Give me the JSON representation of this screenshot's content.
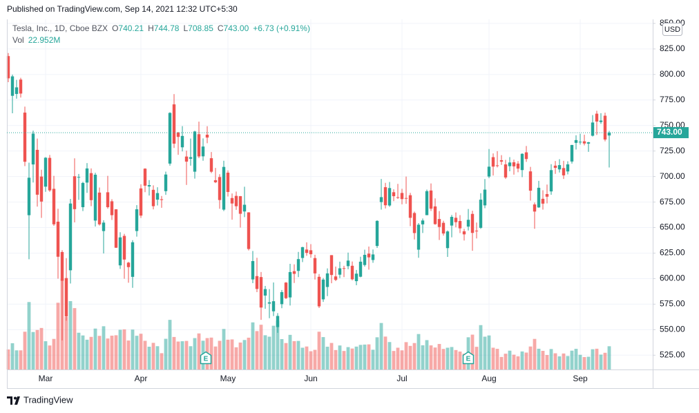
{
  "header": {
    "published": "Published on TradingView.com, Sep 14, 2021 12:32 UTC+5:30"
  },
  "footer": {
    "brand": "TradingView"
  },
  "chart_data": {
    "type": "candlestick",
    "symbol": "Tesla, Inc., 1D, Cboe BZX",
    "ohlc_legend": [
      {
        "label": "O",
        "value": "740.21"
      },
      {
        "label": "H",
        "value": "744.78"
      },
      {
        "label": "L",
        "value": "708.85"
      },
      {
        "label": "C",
        "value": "743.00"
      }
    ],
    "change": "+6.73 (+0.91%)",
    "volume_legend": {
      "label": "Vol",
      "value": "22.952M"
    },
    "currency": "USD",
    "last_price": {
      "value": 743,
      "label": "743.00"
    },
    "events": [
      {
        "label": "E"
      },
      {
        "label": "E"
      }
    ],
    "up_color": "#26a69a",
    "down_color": "#ef5350",
    "grid": true,
    "ylim": [
      511,
      854
    ],
    "yticks": [
      {
        "value": 525,
        "label": "525.00"
      },
      {
        "value": 550,
        "label": "550.00"
      },
      {
        "value": 575,
        "label": "575.00"
      },
      {
        "value": 600,
        "label": "600.00"
      },
      {
        "value": 625,
        "label": "625.00"
      },
      {
        "value": 650,
        "label": "650.00"
      },
      {
        "value": 675,
        "label": "675.00"
      },
      {
        "value": 700,
        "label": "700.00"
      },
      {
        "value": 725,
        "label": "725.00"
      },
      {
        "value": 750,
        "label": "750.00"
      },
      {
        "value": 775,
        "label": "775.00"
      },
      {
        "value": 800,
        "label": "800.00"
      },
      {
        "value": 825,
        "label": "825.00"
      },
      {
        "value": 850,
        "label": "850.00"
      }
    ],
    "volume_lim": [
      0,
      150
    ],
    "categories": [
      null,
      null,
      null,
      null,
      null,
      null,
      null,
      null,
      null,
      "Mar",
      null,
      null,
      null,
      null,
      null,
      null,
      null,
      null,
      null,
      null,
      null,
      null,
      null,
      null,
      null,
      null,
      null,
      null,
      null,
      null,
      null,
      null,
      "Apr",
      null,
      null,
      null,
      null,
      null,
      null,
      null,
      null,
      null,
      null,
      null,
      null,
      null,
      null,
      null,
      null,
      null,
      null,
      null,
      null,
      "May",
      null,
      null,
      null,
      null,
      null,
      null,
      null,
      null,
      null,
      null,
      null,
      null,
      null,
      null,
      null,
      null,
      null,
      null,
      null,
      "Jun",
      null,
      null,
      null,
      null,
      null,
      null,
      null,
      null,
      null,
      null,
      null,
      null,
      null,
      null,
      null,
      null,
      null,
      null,
      null,
      null,
      null,
      "Jul",
      null,
      null,
      null,
      null,
      null,
      null,
      null,
      null,
      null,
      null,
      null,
      null,
      null,
      null,
      null,
      null,
      null,
      null,
      null,
      null,
      "Aug",
      null,
      null,
      null,
      null,
      null,
      null,
      null,
      null,
      null,
      null,
      null,
      null,
      null,
      null,
      null,
      null,
      null,
      null,
      null,
      null,
      null,
      "Sep",
      null,
      null,
      null,
      null,
      null,
      null,
      null
    ],
    "open": [
      818.0,
      779.09,
      780.9,
      795.0,
      762.64,
      662.13,
      711.85,
      726.15,
      700.0,
      690.11,
      718.28,
      687.99,
      655.8,
      626.06,
      600.55,
      608.18,
      700.3,
      699.4,
      670.0,
      694.09,
      703.35,
      656.87,
      684.29,
      646.6,
      684.59,
      675.77,
      667.91,
      613.0,
      641.87,
      615.64,
      601.75,
      646.62,
      688.37,
      707.71,
      690.3,
      687.0,
      677.38,
      677.77,
      685.7,
      712.7,
      770.7,
      743.1,
      728.65,
      719.6,
      717.42,
      704.77,
      741.5,
      719.8,
      741.0,
      717.96,
      696.41,
      699.51,
      667.59,
      703.8,
      678.94,
      681.06,
      680.76,
      665.8,
      664.9,
      599.24,
      602.49,
      601.54,
      583.41,
      575.55,
      568.0,
      552.55,
      575.0,
      596.11,
      581.6,
      607.31,
      607.56,
      620.24,
      628.5,
      627.8,
      620.13,
      601.8,
      579.71,
      591.83,
      623.01,
      602.17,
      603.88,
      610.23,
      612.23,
      612.6,
      597.54,
      601.89,
      613.37,
      624.48,
      618.25,
      632.0,
      674.99,
      689.58,
      671.64,
      684.65,
      679.77,
      683.92,
      678.98,
      681.71,
      664.27,
      628.37,
      653.18,
      662.2,
      686.32,
      670.75,
      658.39,
      654.68,
      629.89,
      651.99,
      659.61,
      656.44,
      646.36,
      650.97,
      663.4,
      647.0,
      649.79,
      671.76,
      700.0,
      719.0,
      711.0,
      716.0,
      711.9,
      710.17,
      713.99,
      712.71,
      706.34,
      723.71,
      705.07,
      672.66,
      669.75,
      678.21,
      682.85,
      685.44,
      710.68,
      707.03,
      708.31,
      705.0,
      714.72,
      733.0,
      734.08,
      734.5,
      732.25,
      740.0,
      761.58,
      753.41,
      759.6,
      740.21
    ],
    "high": [
      821.0,
      799.84,
      794.69,
      796.79,
      768.5,
      713.61,
      745.0,
      737.21,
      706.7,
      719.0,
      721.11,
      700.7,
      668.5,
      627.84,
      620.13,
      678.09,
      717.85,
      702.5,
      694.88,
      713.18,
      707.92,
      703.73,
      689.23,
      657.23,
      700.64,
      677.8,
      668.02,
      645.5,
      643.82,
      616.48,
      637.66,
      672.0,
      692.42,
      708.16,
      696.55,
      691.38,
      689.55,
      680.97,
      704.8,
      763.0,
      780.79,
      743.69,
      749.41,
      725.4,
      737.25,
      744.84,
      753.77,
      737.36,
      749.3,
      724.0,
      708.5,
      702.25,
      715.47,
      706.0,
      683.45,
      685.3,
      681.02,
      690.0,
      665.05,
      627.1,
      620.41,
      606.46,
      592.87,
      589.73,
      596.25,
      566.21,
      588.85,
      596.68,
      614.48,
      613.99,
      626.17,
      631.13,
      635.59,
      633.8,
      623.36,
      604.55,
      600.61,
      610.0,
      623.09,
      611.79,
      616.59,
      612.56,
      625.49,
      616.79,
      608.5,
      621.47,
      628.35,
      631.39,
      628.57,
      657.2,
      697.62,
      693.81,
      694.7,
      687.51,
      692.81,
      687.99,
      700.0,
      684.0,
      665.7,
      654.43,
      658.91,
      687.24,
      693.28,
      678.61,
      666.14,
      656.7,
      647.2,
      662.39,
      664.86,
      662.17,
      648.8,
      668.2,
      666.5,
      654.97,
      683.69,
      697.53,
      726.94,
      722.65,
      724.9,
      720.95,
      716.33,
      719.03,
      716.59,
      715.18,
      722.8,
      729.9,
      709.5,
      674.58,
      695.77,
      686.55,
      692.13,
      712.13,
      715.22,
      716.97,
      715.4,
      715.0,
      731.0,
      740.39,
      741.99,
      740.97,
      734.0,
      760.2,
      764.45,
      762.1,
      762.61,
      744.78
    ],
    "low": [
      792.44,
      762.01,
      776.27,
      777.37,
      710.2,
      619.0,
      694.17,
      670.58,
      659.51,
      685.05,
      685.0,
      651.71,
      600.0,
      539.49,
      558.79,
      595.21,
      655.06,
      677.18,
      666.14,
      684.04,
      671.0,
      651.01,
      652.0,
      624.62,
      668.51,
      657.51,
      630.11,
      609.5,
      599.89,
      596.02,
      591.01,
      641.11,
      659.42,
      684.7,
      681.37,
      667.84,
      671.65,
      669.43,
      682.09,
      710.66,
      728.03,
      721.31,
      724.6,
      691.8,
      710.69,
      698.0,
      718.04,
      715.46,
      732.61,
      703.35,
      693.6,
      668.5,
      666.14,
      680.5,
      657.7,
      667.34,
      650.0,
      660.22,
      627.61,
      595.6,
      586.77,
      559.65,
      570.46,
      561.2,
      563.38,
      546.98,
      571.07,
      580.0,
      573.65,
      595.71,
      601.5,
      616.21,
      622.38,
      620.55,
      599.14,
      571.22,
      577.2,
      582.88,
      595.5,
      597.63,
      600.5,
      601.52,
      609.18,
      598.23,
      593.5,
      601.34,
      611.8,
      608.88,
      615.5,
      630.04,
      667.61,
      668.7,
      670.32,
      675.89,
      678.14,
      672.8,
      673.26,
      651.4,
      638.32,
      620.46,
      644.69,
      662.16,
      666.3,
      652.84,
      637.88,
      642.2,
      621.29,
      640.5,
      650.29,
      644.6,
      637.3,
      647.11,
      627.24,
      639.4,
      648.8,
      669.0,
      698.4,
      701.01,
      708.93,
      711.41,
      697.63,
      705.13,
      701.88,
      704.21,
      699.4,
      714.34,
      676.4,
      648.84,
      669.35,
      667.59,
      673.7,
      682.18,
      702.64,
      704.0,
      697.62,
      702.1,
      712.73,
      726.44,
      731.27,
      730.54,
      724.2,
      739.26,
      740.77,
      751.63,
      734.52,
      708.85
    ],
    "close": [
      796.22,
      798.15,
      787.38,
      781.3,
      714.5,
      698.84,
      742.02,
      682.22,
      675.5,
      718.43,
      686.44,
      653.2,
      621.44,
      597.95,
      563.0,
      673.58,
      668.06,
      699.6,
      693.73,
      707.94,
      676.88,
      701.81,
      653.16,
      654.87,
      670.0,
      662.16,
      630.27,
      640.39,
      618.71,
      611.29,
      635.62,
      667.93,
      661.75,
      691.05,
      691.62,
      670.97,
      683.8,
      677.02,
      701.98,
      762.32,
      732.23,
      738.85,
      739.78,
      714.63,
      718.99,
      744.12,
      719.69,
      729.4,
      738.2,
      704.74,
      694.4,
      677.0,
      709.44,
      684.9,
      673.6,
      670.94,
      663.54,
      672.37,
      629.04,
      617.2,
      589.89,
      571.69,
      589.74,
      576.83,
      577.87,
      563.46,
      586.78,
      580.88,
      606.44,
      604.69,
      619.13,
      630.85,
      625.22,
      623.9,
      605.12,
      572.84,
      599.05,
      605.13,
      603.59,
      598.78,
      610.12,
      609.89,
      617.69,
      599.36,
      604.87,
      616.6,
      623.31,
      620.83,
      623.71,
      656.57,
      679.82,
      671.87,
      688.72,
      680.76,
      679.7,
      677.92,
      678.9,
      659.58,
      644.65,
      652.81,
      656.95,
      685.7,
      668.54,
      653.38,
      650.6,
      644.22,
      646.22,
      660.5,
      655.29,
      649.26,
      643.38,
      657.62,
      644.78,
      646.98,
      677.35,
      687.2,
      709.67,
      709.74,
      710.92,
      714.63,
      699.1,
      713.76,
      709.99,
      707.82,
      722.25,
      717.17,
      686.17,
      665.71,
      688.99,
      673.47,
      680.26,
      706.3,
      708.49,
      711.2,
      701.16,
      711.92,
      730.91,
      735.72,
      734.09,
      732.39,
      733.57,
      752.92,
      753.87,
      754.86,
      736.27,
      743.0
    ],
    "volume": [
      19.8,
      25.9,
      18.9,
      18.9,
      37.3,
      66.6,
      37.0,
      39.0,
      41.0,
      27.9,
      23.7,
      30.2,
      65.9,
      89.4,
      52.0,
      67.5,
      60.6,
      36.3,
      33.6,
      29.4,
      32.2,
      40.4,
      33.2,
      42.7,
      30.6,
      33.4,
      33.8,
      39.2,
      39.6,
      28.6,
      39.4,
      33.3,
      35.3,
      28.3,
      22.5,
      26.3,
      23.0,
      16.1,
      30.3,
      49.0,
      32.1,
      27.6,
      27.9,
      28.2,
      23.0,
      31.0,
      35.6,
      28.4,
      31.0,
      31.5,
      22.7,
      28.3,
      40.0,
      29.4,
      29.7,
      21.9,
      26.6,
      29.1,
      31.4,
      46.5,
      37.9,
      44.2,
      33.8,
      32.4,
      43.2,
      48.3,
      30.0,
      26.1,
      34.2,
      28.0,
      28.2,
      21.5,
      22.7,
      18.0,
      19.4,
      37.3,
      32.0,
      22.5,
      26.2,
      19.2,
      23.7,
      18.3,
      22.1,
      20.7,
      22.6,
      24.3,
      24.6,
      24.8,
      19.5,
      31.8,
      45.9,
      32.5,
      27.1,
      18.3,
      21.5,
      18.9,
      27.0,
      23.3,
      26.1,
      35.0,
      23.9,
      29.0,
      23.8,
      21.7,
      25.2,
      20.3,
      21.5,
      22.2,
      19.2,
      17.7,
      15.6,
      31.8,
      34.4,
      22.4,
      43.8,
      32.4,
      33.6,
      21.5,
      20.4,
      12.4,
      15.6,
      18.6,
      14.6,
      13.0,
      17.8,
      16.7,
      22.7,
      30.2,
      20.5,
      18.4,
      14.3,
      20.2,
      16.0,
      13.0,
      15.8,
      13.3,
      18.6,
      20.4,
      14.5,
      12.3,
      12.6,
      20.0,
      20.5,
      14.7,
      16.5,
      22.952
    ]
  }
}
